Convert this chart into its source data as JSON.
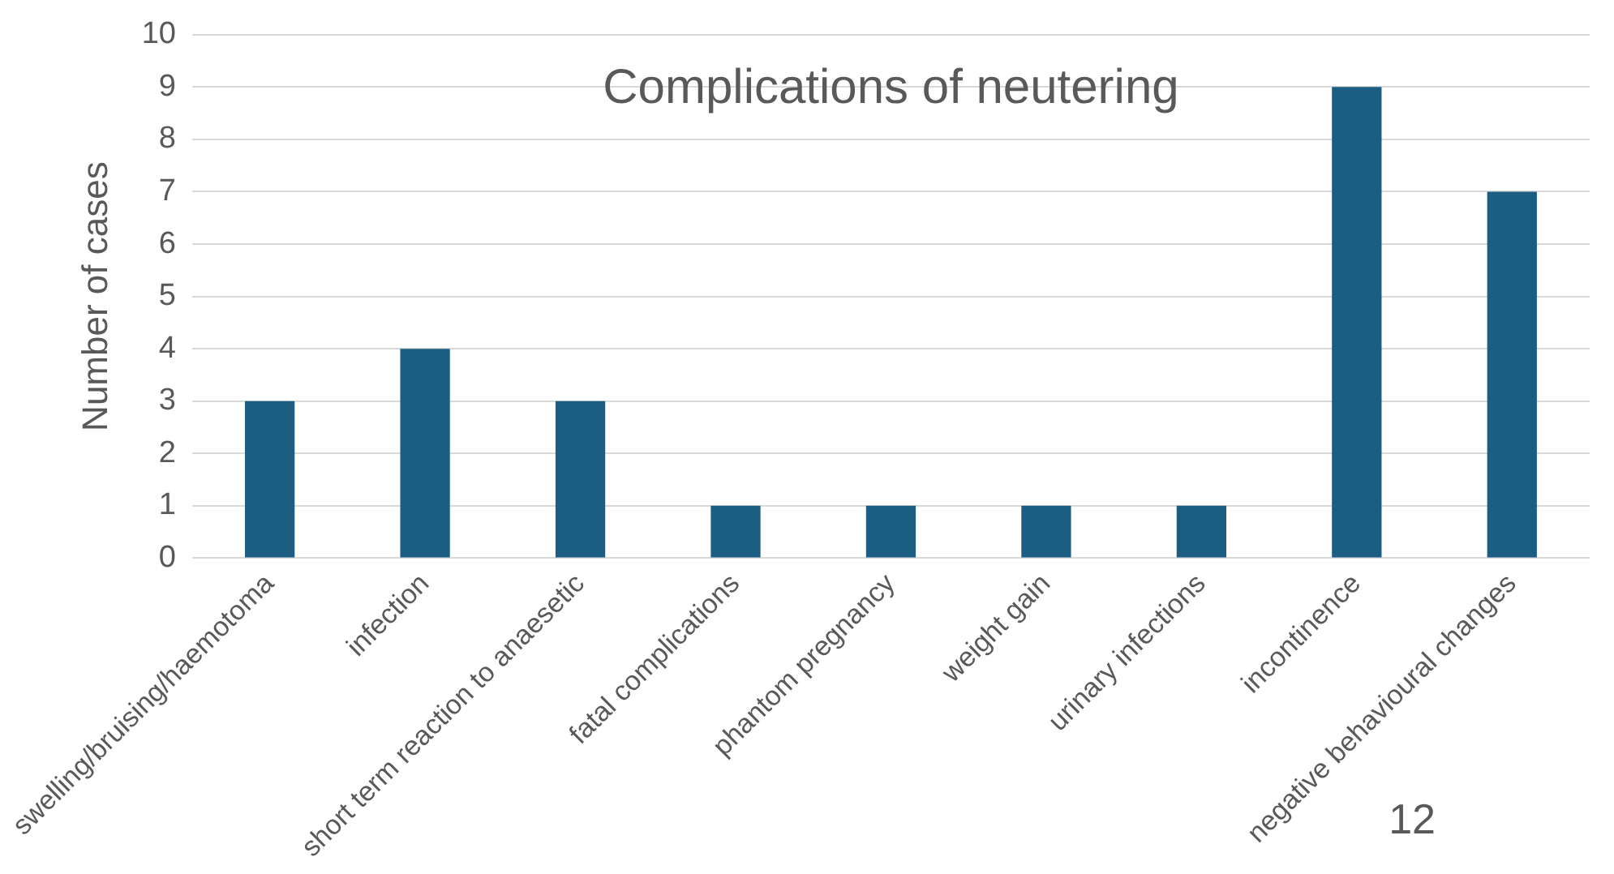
{
  "chart_data": {
    "type": "bar",
    "title": "Complications of neutering",
    "ylabel": "Number of cases",
    "categories": [
      "swelling/bruising/haemotoma",
      "infection",
      "short term reaction to anaesetic",
      "fatal complications",
      "phantom pregnancy",
      "weight gain",
      "urinary infections",
      "incontinence",
      "negative behavioural changes"
    ],
    "values": [
      3,
      4,
      3,
      1,
      1,
      1,
      1,
      9,
      7
    ],
    "color": "#1b5e82",
    "ylim": [
      0,
      10
    ],
    "yticks": [
      0,
      1,
      2,
      3,
      4,
      5,
      6,
      7,
      8,
      9,
      10
    ],
    "grid": "y",
    "legend": false,
    "annotations": [
      "12"
    ]
  }
}
